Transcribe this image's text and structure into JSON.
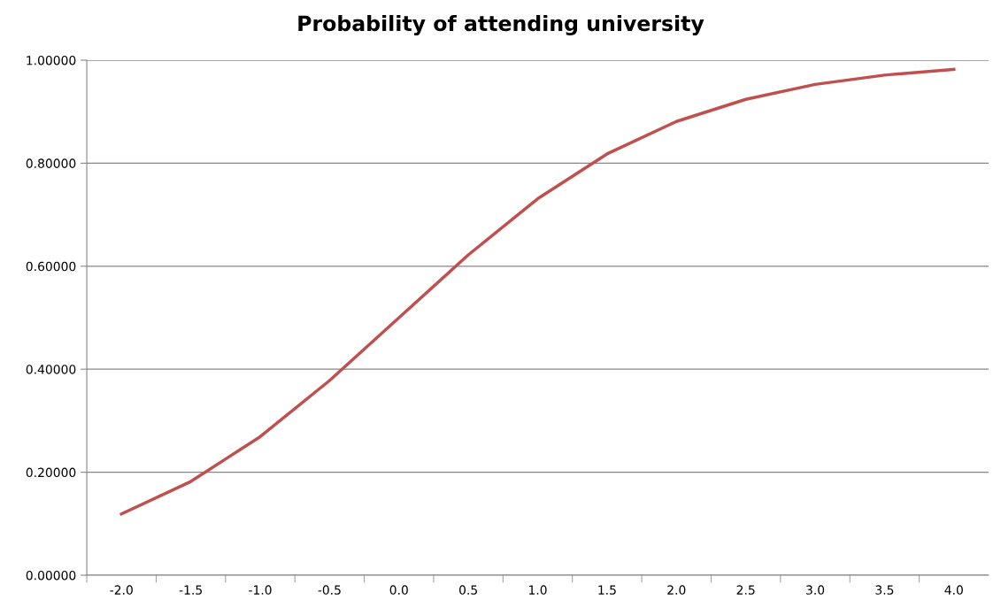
{
  "chart_data": {
    "type": "line",
    "title": "Probability of attending university",
    "categories": [
      "-2.0",
      "-1.5",
      "-1.0",
      "-0.5",
      "0.0",
      "0.5",
      "1.0",
      "1.5",
      "2.0",
      "2.5",
      "3.0",
      "3.5",
      "4.0"
    ],
    "series": [
      {
        "color": "#c0504d",
        "values": [
          0.119,
          0.182,
          0.269,
          0.378,
          0.5,
          0.622,
          0.731,
          0.818,
          0.881,
          0.924,
          0.953,
          0.971,
          0.982
        ]
      }
    ],
    "ylim": [
      0,
      1
    ],
    "yticks": [
      {
        "value": 0,
        "label": "0.00000"
      },
      {
        "value": 0.2,
        "label": "0.20000"
      },
      {
        "value": 0.4,
        "label": "0.40000"
      },
      {
        "value": 0.6,
        "label": "0.60000"
      },
      {
        "value": 0.8,
        "label": "0.80000"
      },
      {
        "value": 1,
        "label": "1.00000"
      }
    ],
    "grid": "y",
    "marker": "none",
    "line_style": "solid"
  }
}
